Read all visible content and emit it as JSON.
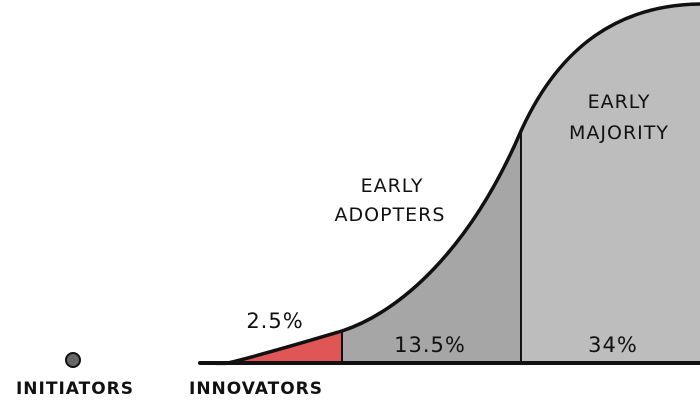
{
  "labels": {
    "initiators": "INITIATORS",
    "innovators": "INNOVATORS",
    "early_adopters": [
      "EARLY",
      "ADOPTERS"
    ],
    "early_majority": [
      "EARLY",
      "MAJORITY"
    ]
  },
  "percentages": {
    "innovators": "2.5%",
    "early_adopters": "13.5%",
    "early_majority": "34%"
  },
  "colors": {
    "innovators_fill": "#e05555",
    "early_adopters_fill": "#a6a6a6",
    "early_majority_fill": "#bdbdbd",
    "outline": "#111111"
  }
}
